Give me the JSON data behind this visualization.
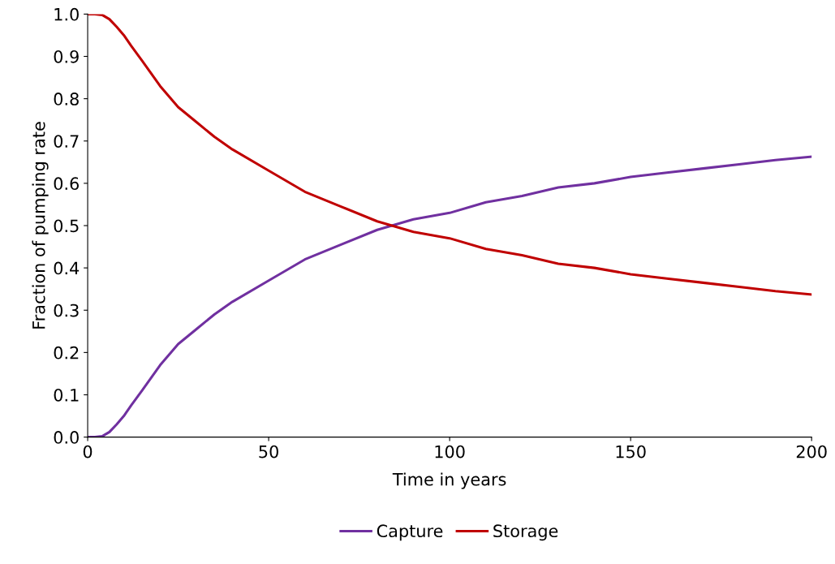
{
  "chart_data": {
    "type": "line",
    "xlabel": "Time in years",
    "ylabel": "Fraction of pumping rate",
    "x": [
      0,
      2,
      4,
      6,
      8,
      10,
      12,
      15,
      20,
      25,
      30,
      35,
      40,
      50,
      60,
      70,
      80,
      90,
      100,
      110,
      120,
      130,
      140,
      150,
      160,
      170,
      180,
      190,
      200
    ],
    "series": [
      {
        "name": "Capture",
        "color": "#7030a0",
        "values": [
          0,
          0,
          0.002,
          0.012,
          0.03,
          0.05,
          0.075,
          0.11,
          0.17,
          0.22,
          0.255,
          0.29,
          0.32,
          0.37,
          0.42,
          0.455,
          0.49,
          0.515,
          0.53,
          0.555,
          0.57,
          0.59,
          0.6,
          0.615,
          0.625,
          0.635,
          0.645,
          0.655,
          0.663
        ]
      },
      {
        "name": "Storage",
        "color": "#c00000",
        "values": [
          1,
          1,
          0.998,
          0.988,
          0.97,
          0.95,
          0.925,
          0.89,
          0.83,
          0.78,
          0.745,
          0.71,
          0.68,
          0.63,
          0.58,
          0.545,
          0.51,
          0.485,
          0.47,
          0.445,
          0.43,
          0.41,
          0.4,
          0.385,
          0.375,
          0.365,
          0.355,
          0.345,
          0.337
        ]
      }
    ],
    "xlim": [
      0,
      200
    ],
    "xticks": [
      0,
      50,
      100,
      150,
      200
    ],
    "ylim": [
      0,
      1
    ],
    "yticks": [
      {
        "value": 0,
        "label": "0.0"
      },
      0.1,
      0.2,
      0.3,
      0.4,
      0.5,
      0.6,
      0.7,
      0.8,
      0.9,
      {
        "value": 1,
        "label": "1.0"
      }
    ],
    "grid": false,
    "legend": "bottom",
    "line_style": "solid",
    "marker": "none"
  }
}
